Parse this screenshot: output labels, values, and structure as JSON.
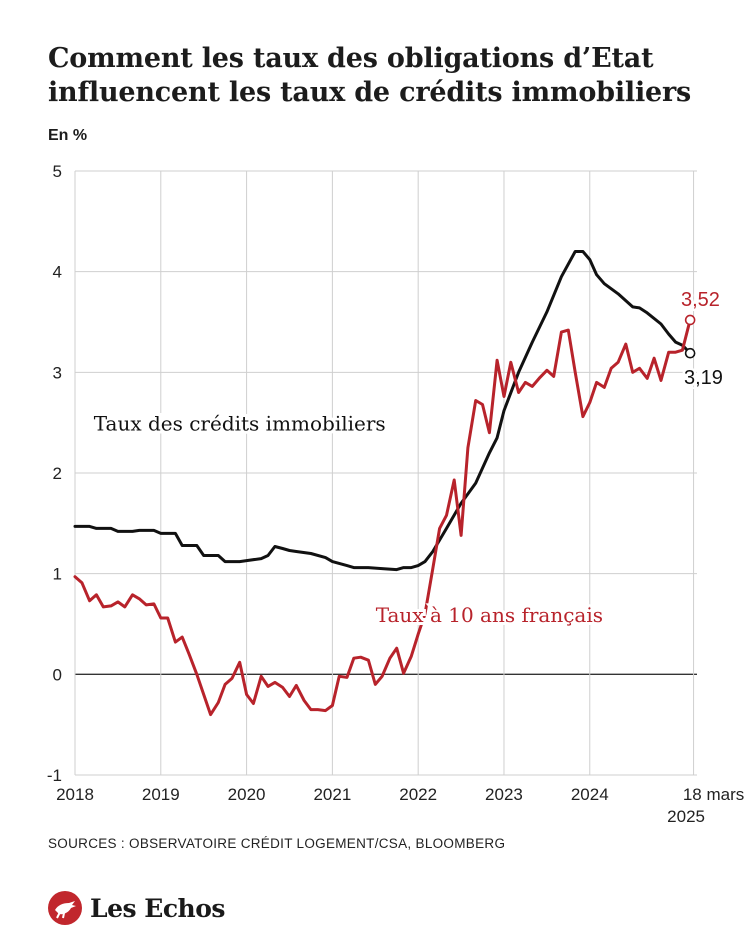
{
  "header": {
    "title": "Comment les taux des obligations d’Etat influencent les taux de crédits immobiliers",
    "unit": "En %"
  },
  "footer": {
    "source": "SOURCES : OBSERVATOIRE CRÉDIT LOGEMENT/CSA, BLOOMBERG",
    "logo": "Les Echos"
  },
  "colors": {
    "credit_line": "#111111",
    "oat_line": "#b8232b",
    "grid": "#cfcfcf",
    "zero_line": "#333333"
  },
  "chart_data": {
    "type": "line",
    "title": "Comment les taux des obligations d’Etat influencent les taux de crédits immobiliers",
    "ylabel": "En %",
    "ylim": [
      -1,
      5
    ],
    "yticks": [
      "5",
      "4",
      "3",
      "2",
      "1",
      "0",
      "-1"
    ],
    "xticks": [
      {
        "label": "2018",
        "x": 2018.0
      },
      {
        "label": "2019",
        "x": 2019.0
      },
      {
        "label": "2020",
        "x": 2020.0
      },
      {
        "label": "2021",
        "x": 2021.0
      },
      {
        "label": "2022",
        "x": 2022.0
      },
      {
        "label": "2023",
        "x": 2023.0
      },
      {
        "label": "2024",
        "x": 2024.0
      },
      {
        "label": "18 mars",
        "label2": "2025",
        "x": 2025.21
      }
    ],
    "xlim": [
      2018.0,
      2025.25
    ],
    "grid": true,
    "series": [
      {
        "name": "Taux des crédits immobiliers",
        "label_pos": [
          2019.92,
          2.42
        ],
        "end_label": "3,19",
        "points": [
          [
            2018.0,
            1.47
          ],
          [
            2018.17,
            1.47
          ],
          [
            2018.25,
            1.45
          ],
          [
            2018.42,
            1.45
          ],
          [
            2018.5,
            1.42
          ],
          [
            2018.67,
            1.42
          ],
          [
            2018.75,
            1.43
          ],
          [
            2018.92,
            1.43
          ],
          [
            2019.0,
            1.4
          ],
          [
            2019.17,
            1.4
          ],
          [
            2019.25,
            1.28
          ],
          [
            2019.42,
            1.28
          ],
          [
            2019.5,
            1.18
          ],
          [
            2019.67,
            1.18
          ],
          [
            2019.75,
            1.12
          ],
          [
            2019.92,
            1.12
          ],
          [
            2020.0,
            1.13
          ],
          [
            2020.17,
            1.15
          ],
          [
            2020.25,
            1.18
          ],
          [
            2020.33,
            1.27
          ],
          [
            2020.42,
            1.25
          ],
          [
            2020.5,
            1.23
          ],
          [
            2020.58,
            1.22
          ],
          [
            2020.75,
            1.2
          ],
          [
            2020.92,
            1.16
          ],
          [
            2021.0,
            1.12
          ],
          [
            2021.17,
            1.08
          ],
          [
            2021.25,
            1.06
          ],
          [
            2021.42,
            1.06
          ],
          [
            2021.58,
            1.05
          ],
          [
            2021.75,
            1.04
          ],
          [
            2021.83,
            1.06
          ],
          [
            2021.92,
            1.06
          ],
          [
            2022.0,
            1.08
          ],
          [
            2022.08,
            1.12
          ],
          [
            2022.17,
            1.22
          ],
          [
            2022.33,
            1.45
          ],
          [
            2022.5,
            1.7
          ],
          [
            2022.67,
            1.9
          ],
          [
            2022.83,
            2.2
          ],
          [
            2022.92,
            2.35
          ],
          [
            2023.0,
            2.62
          ],
          [
            2023.17,
            3.0
          ],
          [
            2023.33,
            3.3
          ],
          [
            2023.5,
            3.6
          ],
          [
            2023.67,
            3.95
          ],
          [
            2023.83,
            4.2
          ],
          [
            2023.92,
            4.2
          ],
          [
            2024.0,
            4.12
          ],
          [
            2024.08,
            3.97
          ],
          [
            2024.17,
            3.88
          ],
          [
            2024.33,
            3.78
          ],
          [
            2024.5,
            3.65
          ],
          [
            2024.58,
            3.64
          ],
          [
            2024.67,
            3.59
          ],
          [
            2024.83,
            3.48
          ],
          [
            2024.92,
            3.38
          ],
          [
            2025.0,
            3.3
          ],
          [
            2025.08,
            3.27
          ],
          [
            2025.17,
            3.19
          ]
        ]
      },
      {
        "name": "Taux à 10 ans français",
        "label_pos": [
          2022.83,
          0.52
        ],
        "end_label": "3,52",
        "points": [
          [
            2018.0,
            0.97
          ],
          [
            2018.08,
            0.91
          ],
          [
            2018.17,
            0.73
          ],
          [
            2018.25,
            0.79
          ],
          [
            2018.33,
            0.67
          ],
          [
            2018.42,
            0.68
          ],
          [
            2018.5,
            0.72
          ],
          [
            2018.58,
            0.67
          ],
          [
            2018.67,
            0.79
          ],
          [
            2018.75,
            0.75
          ],
          [
            2018.83,
            0.69
          ],
          [
            2018.92,
            0.7
          ],
          [
            2019.0,
            0.56
          ],
          [
            2019.08,
            0.56
          ],
          [
            2019.17,
            0.32
          ],
          [
            2019.25,
            0.37
          ],
          [
            2019.33,
            0.2
          ],
          [
            2019.42,
            0.0
          ],
          [
            2019.5,
            -0.2
          ],
          [
            2019.58,
            -0.4
          ],
          [
            2019.67,
            -0.28
          ],
          [
            2019.75,
            -0.1
          ],
          [
            2019.83,
            -0.04
          ],
          [
            2019.92,
            0.12
          ],
          [
            2020.0,
            -0.2
          ],
          [
            2020.08,
            -0.29
          ],
          [
            2020.17,
            -0.02
          ],
          [
            2020.25,
            -0.12
          ],
          [
            2020.33,
            -0.08
          ],
          [
            2020.42,
            -0.13
          ],
          [
            2020.5,
            -0.22
          ],
          [
            2020.58,
            -0.11
          ],
          [
            2020.67,
            -0.26
          ],
          [
            2020.75,
            -0.35
          ],
          [
            2020.83,
            -0.35
          ],
          [
            2020.92,
            -0.36
          ],
          [
            2021.0,
            -0.31
          ],
          [
            2021.08,
            -0.02
          ],
          [
            2021.17,
            -0.03
          ],
          [
            2021.25,
            0.16
          ],
          [
            2021.33,
            0.17
          ],
          [
            2021.42,
            0.14
          ],
          [
            2021.5,
            -0.1
          ],
          [
            2021.58,
            -0.02
          ],
          [
            2021.67,
            0.16
          ],
          [
            2021.75,
            0.26
          ],
          [
            2021.83,
            0.01
          ],
          [
            2021.92,
            0.18
          ],
          [
            2022.0,
            0.4
          ],
          [
            2022.08,
            0.6
          ],
          [
            2022.17,
            1.05
          ],
          [
            2022.25,
            1.45
          ],
          [
            2022.33,
            1.58
          ],
          [
            2022.42,
            1.93
          ],
          [
            2022.5,
            1.38
          ],
          [
            2022.58,
            2.25
          ],
          [
            2022.67,
            2.72
          ],
          [
            2022.75,
            2.68
          ],
          [
            2022.83,
            2.4
          ],
          [
            2022.92,
            3.12
          ],
          [
            2023.0,
            2.76
          ],
          [
            2023.08,
            3.1
          ],
          [
            2023.17,
            2.8
          ],
          [
            2023.25,
            2.9
          ],
          [
            2023.33,
            2.86
          ],
          [
            2023.42,
            2.95
          ],
          [
            2023.5,
            3.02
          ],
          [
            2023.58,
            2.96
          ],
          [
            2023.67,
            3.4
          ],
          [
            2023.75,
            3.42
          ],
          [
            2023.83,
            3.0
          ],
          [
            2023.92,
            2.56
          ],
          [
            2024.0,
            2.7
          ],
          [
            2024.08,
            2.9
          ],
          [
            2024.17,
            2.85
          ],
          [
            2024.25,
            3.04
          ],
          [
            2024.33,
            3.1
          ],
          [
            2024.42,
            3.28
          ],
          [
            2024.5,
            3.0
          ],
          [
            2024.58,
            3.04
          ],
          [
            2024.67,
            2.94
          ],
          [
            2024.75,
            3.14
          ],
          [
            2024.83,
            2.92
          ],
          [
            2024.92,
            3.2
          ],
          [
            2025.0,
            3.2
          ],
          [
            2025.08,
            3.22
          ],
          [
            2025.17,
            3.52
          ]
        ]
      }
    ]
  }
}
